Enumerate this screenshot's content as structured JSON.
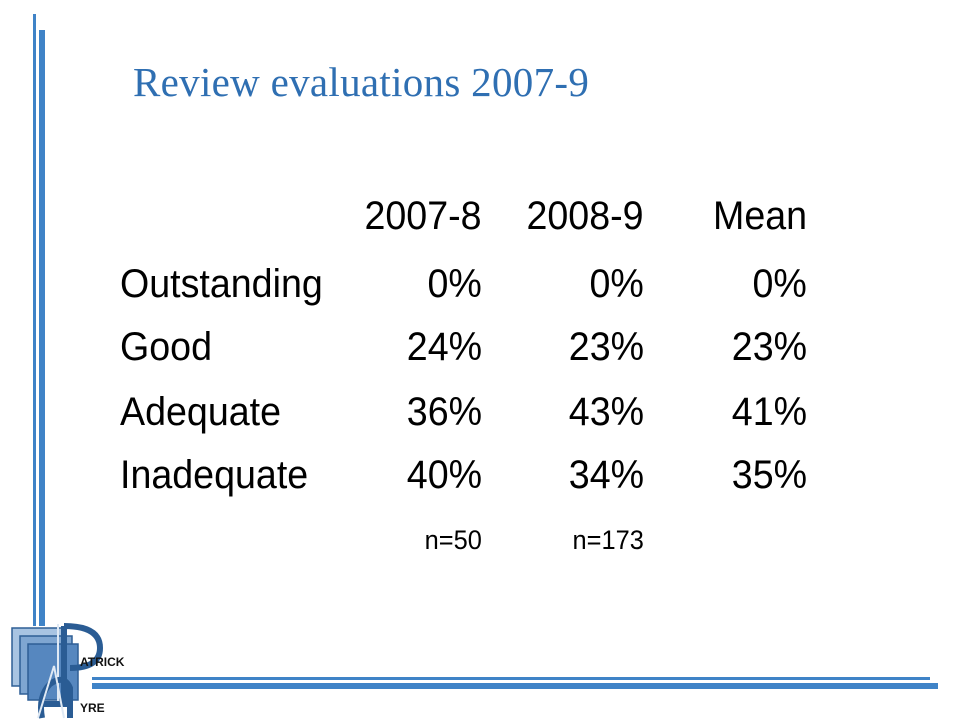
{
  "slide": {
    "title": "Review evaluations 2007-9"
  },
  "table": {
    "columns": [
      "2007-8",
      "2008-9",
      "Mean"
    ],
    "rows": [
      {
        "label": "Outstanding",
        "values": [
          "0%",
          "0%",
          "0%"
        ]
      },
      {
        "label": "Good",
        "values": [
          "24%",
          "23%",
          "23%"
        ]
      },
      {
        "label": "Adequate",
        "values": [
          "36%",
          "43%",
          "41%"
        ]
      },
      {
        "label": "Inadequate",
        "values": [
          "40%",
          "34%",
          "35%"
        ]
      }
    ],
    "sample_sizes": [
      "n=50",
      "n=173"
    ]
  },
  "logo": {
    "text_line1": "ATRICK",
    "text_line2": "YRE"
  },
  "colors": {
    "accent": "#3f83c7",
    "title": "#2f6fb2"
  }
}
